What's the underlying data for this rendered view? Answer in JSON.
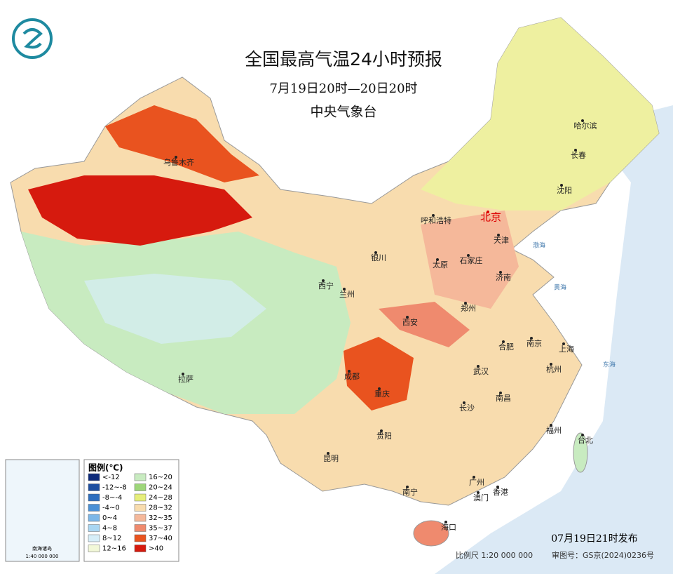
{
  "header": {
    "title": "全国最高气温24小时预报",
    "period": "7月19日20时—20日20时",
    "agency": "中央气象台"
  },
  "cities": [
    "乌鲁木齐",
    "哈尔滨",
    "长春",
    "沈阳",
    "北京",
    "天津",
    "呼和浩特",
    "银川",
    "太原",
    "石家庄",
    "济南",
    "西宁",
    "兰州",
    "郑州",
    "西安",
    "合肥",
    "南京",
    "上海",
    "武汉",
    "杭州",
    "成都",
    "重庆",
    "拉萨",
    "南昌",
    "长沙",
    "福州",
    "台北",
    "贵阳",
    "昆明",
    "广州",
    "香港",
    "澳门",
    "南宁",
    "海口"
  ],
  "seas": [
    "渤海",
    "黄海",
    "东海"
  ],
  "legend": {
    "title": "图例(℃)",
    "items": [
      {
        "label": "<-12",
        "color": "#0d2a7a"
      },
      {
        "label": "-12~-8",
        "color": "#1e4fa0"
      },
      {
        "label": "-8~-4",
        "color": "#2f6fbf"
      },
      {
        "label": "-4~0",
        "color": "#4a90d6"
      },
      {
        "label": "0~4",
        "color": "#7cb7e8"
      },
      {
        "label": "4~8",
        "color": "#a9d6f2"
      },
      {
        "label": "8~12",
        "color": "#d6eef8"
      },
      {
        "label": "12~16",
        "color": "#f2f8d8"
      },
      {
        "label": "16~20",
        "color": "#c8ebc0"
      },
      {
        "label": "20~24",
        "color": "#9ed67a"
      },
      {
        "label": "24~28",
        "color": "#e6ee7a"
      },
      {
        "label": "28~32",
        "color": "#f8dcae"
      },
      {
        "label": "32~35",
        "color": "#f5b89a"
      },
      {
        "label": "35~37",
        "color": "#ef8a6e"
      },
      {
        "label": "37~40",
        "color": "#e9531f"
      },
      {
        "label": ">40",
        "color": "#d61a0e"
      }
    ]
  },
  "inset": {
    "label": "南海诸岛",
    "scale": "1:40 000 000"
  },
  "footer": {
    "issued": "07月19日21时发布",
    "scale": "比例尺 1:20 000 000",
    "approval": "审图号：GS京(2024)0236号"
  }
}
